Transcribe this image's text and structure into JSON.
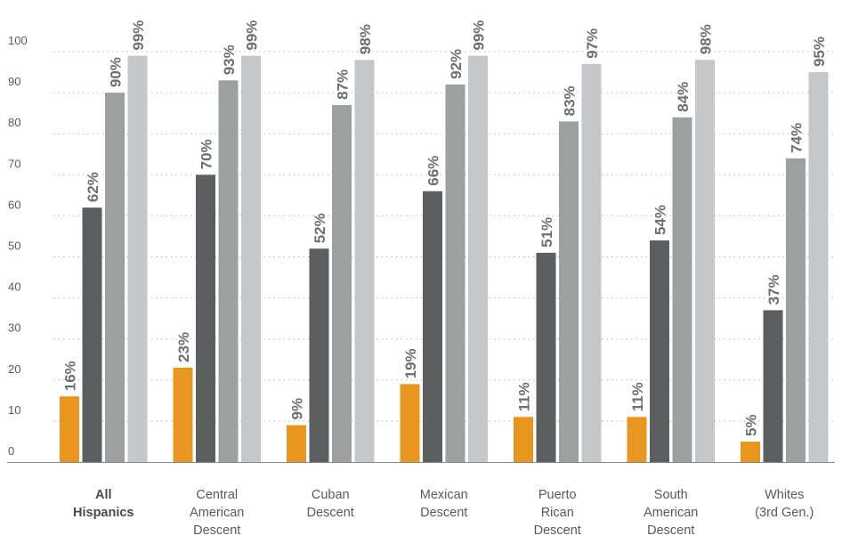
{
  "chart_data": {
    "type": "bar",
    "categories": [
      [
        "All",
        "Hispanics"
      ],
      [
        "Central",
        "American",
        "Descent"
      ],
      [
        "Cuban",
        "Descent"
      ],
      [
        "Mexican",
        "Descent"
      ],
      [
        "Puerto",
        "Rican",
        "Descent"
      ],
      [
        "South",
        "American",
        "Descent"
      ],
      [
        "Whites",
        "(3rd Gen.)"
      ]
    ],
    "bold_categories": [
      0
    ],
    "series": [
      {
        "color": "#e8961e",
        "values": [
          16,
          23,
          9,
          19,
          11,
          11,
          5
        ]
      },
      {
        "color": "#5d5e60",
        "values": [
          62,
          70,
          52,
          66,
          51,
          54,
          37
        ]
      },
      {
        "color": "#9d9fa1",
        "values": [
          90,
          93,
          87,
          92,
          83,
          84,
          74
        ]
      },
      {
        "color": "#c6c7c9",
        "values": [
          99,
          99,
          98,
          99,
          97,
          98,
          95
        ]
      }
    ],
    "value_suffix": "%",
    "yticks": [
      0,
      10,
      20,
      30,
      40,
      50,
      60,
      70,
      80,
      90,
      100
    ],
    "ylim": [
      0,
      100
    ],
    "grid": true,
    "legend": "none"
  }
}
